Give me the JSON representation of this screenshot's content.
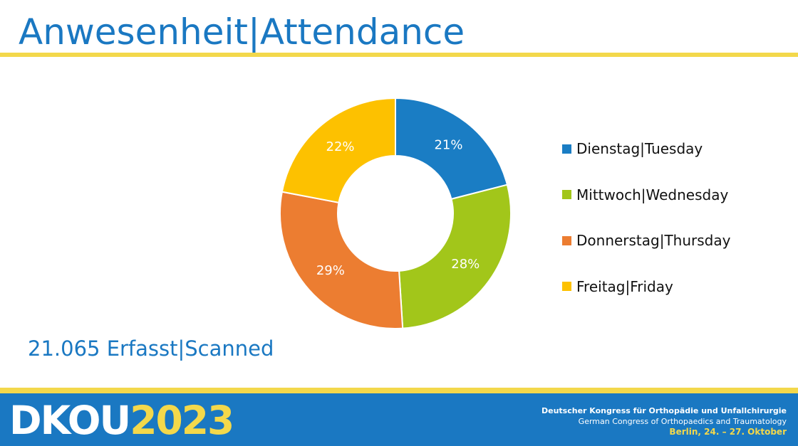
{
  "header": {
    "title": "Anwesenheit|Attendance"
  },
  "chart_data": {
    "type": "pie",
    "donut": true,
    "categories": [
      "Dienstag|Tuesday",
      "Mittwoch|Wednesday",
      "Donnerstag|Thursday",
      "Freitag|Friday"
    ],
    "values": [
      21,
      28,
      29,
      22
    ],
    "labels": [
      "21%",
      "28%",
      "29%",
      "22%"
    ],
    "colors": [
      "#1a7dc4",
      "#a2c61a",
      "#ec7d31",
      "#fdc100"
    ],
    "legend_position": "right"
  },
  "summary": {
    "scanned": "21.065 Erfasst|Scanned"
  },
  "footer": {
    "brand_primary": "DKOU",
    "brand_year": "2023",
    "congress_de": "Deutscher Kongress für Orthopädie und Unfallchirurgie",
    "congress_en": "German Congress of Orthopaedics and Traumatology",
    "congress_date": "Berlin, 24. – 27. Oktober"
  }
}
